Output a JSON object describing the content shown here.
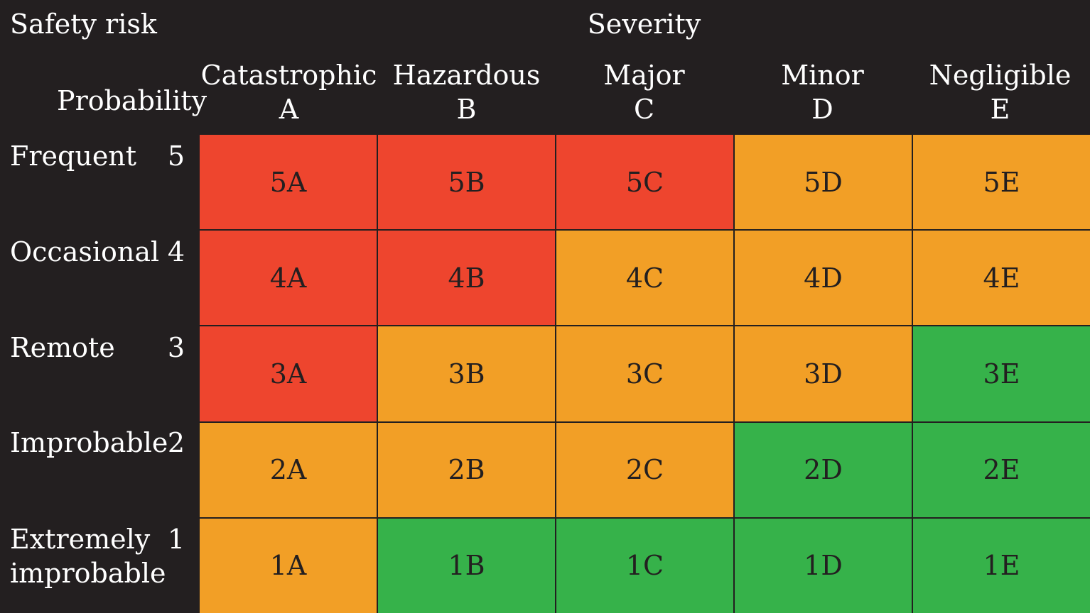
{
  "title": "Safety risk",
  "severity_title": "Severity",
  "probability_title": "Probability",
  "severity": [
    {
      "name": "Catastrophic",
      "code": "A"
    },
    {
      "name": "Hazardous",
      "code": "B"
    },
    {
      "name": "Major",
      "code": "C"
    },
    {
      "name": "Minor",
      "code": "D"
    },
    {
      "name": "Negligible",
      "code": "E"
    }
  ],
  "probability": [
    {
      "name": "Frequent",
      "value": "5"
    },
    {
      "name": "Occasional",
      "value": "4"
    },
    {
      "name": "Remote",
      "value": "3"
    },
    {
      "name": "Improbable",
      "value": "2"
    },
    {
      "name": "Extremely improbable",
      "value": "1"
    }
  ],
  "colors": {
    "high": "#ee452e",
    "medium": "#f29f26",
    "low": "#36b24a",
    "background": "#231f20"
  },
  "matrix": [
    [
      {
        "code": "5A",
        "risk": "high"
      },
      {
        "code": "5B",
        "risk": "high"
      },
      {
        "code": "5C",
        "risk": "high"
      },
      {
        "code": "5D",
        "risk": "medium"
      },
      {
        "code": "5E",
        "risk": "medium"
      }
    ],
    [
      {
        "code": "4A",
        "risk": "high"
      },
      {
        "code": "4B",
        "risk": "high"
      },
      {
        "code": "4C",
        "risk": "medium"
      },
      {
        "code": "4D",
        "risk": "medium"
      },
      {
        "code": "4E",
        "risk": "medium"
      }
    ],
    [
      {
        "code": "3A",
        "risk": "high"
      },
      {
        "code": "3B",
        "risk": "medium"
      },
      {
        "code": "3C",
        "risk": "medium"
      },
      {
        "code": "3D",
        "risk": "medium"
      },
      {
        "code": "3E",
        "risk": "low"
      }
    ],
    [
      {
        "code": "2A",
        "risk": "medium"
      },
      {
        "code": "2B",
        "risk": "medium"
      },
      {
        "code": "2C",
        "risk": "medium"
      },
      {
        "code": "2D",
        "risk": "low"
      },
      {
        "code": "2E",
        "risk": "low"
      }
    ],
    [
      {
        "code": "1A",
        "risk": "medium"
      },
      {
        "code": "1B",
        "risk": "low"
      },
      {
        "code": "1C",
        "risk": "low"
      },
      {
        "code": "1D",
        "risk": "low"
      },
      {
        "code": "1E",
        "risk": "low"
      }
    ]
  ]
}
